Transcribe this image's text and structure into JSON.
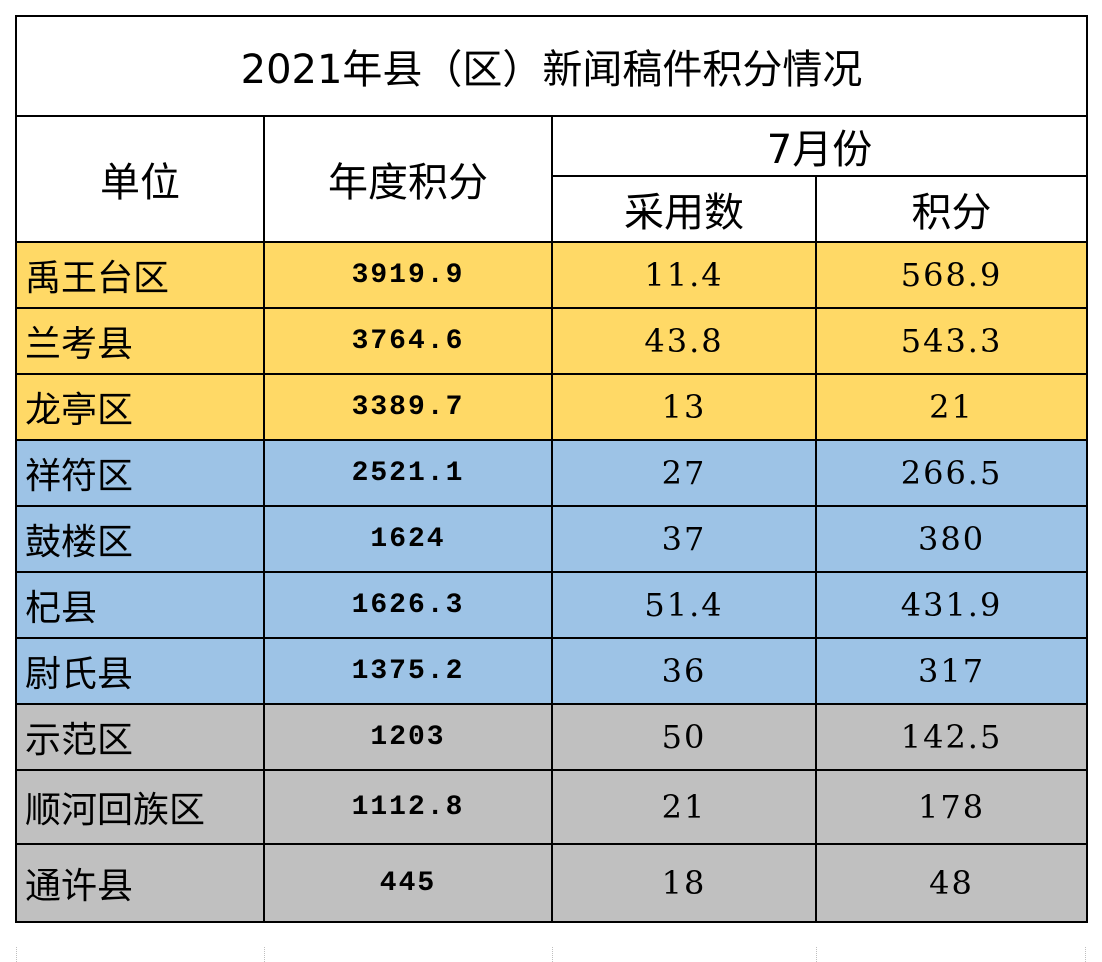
{
  "table": {
    "title": "2021年县（区）新闻稿件积分情况",
    "headers": {
      "unit": "单位",
      "annual": "年度积分",
      "month": "7月份",
      "adopted": "采用数",
      "points": "积分"
    },
    "tier_colors": {
      "gold": "#FFD966",
      "blue": "#9DC3E6",
      "gray": "#C0C0C0"
    },
    "rows": [
      {
        "unit": "禹王台区",
        "annual": "3919.9",
        "adopted": "11.4",
        "points": "568.9",
        "tier": "gold"
      },
      {
        "unit": "兰考县",
        "annual": "3764.6",
        "adopted": "43.8",
        "points": "543.3",
        "tier": "gold"
      },
      {
        "unit": "龙亭区",
        "annual": "3389.7",
        "adopted": "13",
        "points": "21",
        "tier": "gold"
      },
      {
        "unit": "祥符区",
        "annual": "2521.1",
        "adopted": "27",
        "points": "266.5",
        "tier": "blue"
      },
      {
        "unit": "鼓楼区",
        "annual": "1624",
        "adopted": "37",
        "points": "380",
        "tier": "blue"
      },
      {
        "unit": "杞县",
        "annual": "1626.3",
        "adopted": "51.4",
        "points": "431.9",
        "tier": "blue"
      },
      {
        "unit": "尉氏县",
        "annual": "1375.2",
        "adopted": "36",
        "points": "317",
        "tier": "blue"
      },
      {
        "unit": "示范区",
        "annual": "1203",
        "adopted": "50",
        "points": "142.5",
        "tier": "gray"
      },
      {
        "unit": "顺河回族区",
        "annual": "1112.8",
        "adopted": "21",
        "points": "178",
        "tier": "gray"
      },
      {
        "unit": "通许县",
        "annual": "445",
        "adopted": "18",
        "points": "48",
        "tier": "gray"
      }
    ]
  }
}
